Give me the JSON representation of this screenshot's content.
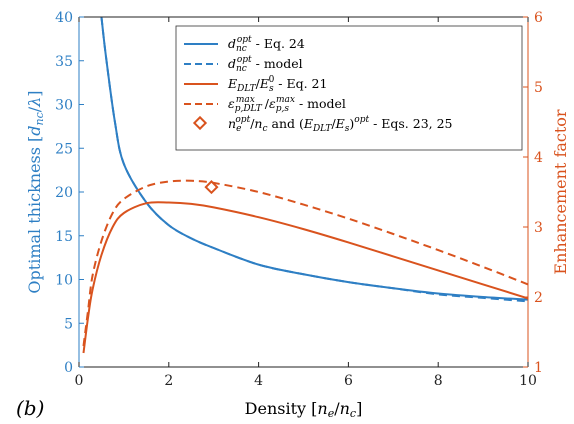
{
  "chart_data": {
    "type": "line",
    "panel_label": "(b)",
    "xlabel": "Density [n_e/n_c]",
    "ylabel_left": "Optimal thickness [d_nc/λ]",
    "ylabel_right": "Enhancement factor",
    "xlim": [
      0,
      10
    ],
    "ylim_left": [
      0,
      40
    ],
    "ylim_right": [
      1,
      6
    ],
    "x_ticks": [
      "0",
      "2",
      "4",
      "6",
      "8",
      "10"
    ],
    "y_ticks_left": [
      "0",
      "5",
      "10",
      "15",
      "20",
      "25",
      "30",
      "35",
      "40"
    ],
    "y_ticks_right": [
      "1",
      "2",
      "3",
      "4",
      "5",
      "6"
    ],
    "colors": {
      "blue": "#2E7FC4",
      "orange": "#D9531E",
      "axis_left": "#2E7FC4",
      "axis_right": "#D9531E"
    },
    "legend": {
      "placement": "top-right",
      "entries": [
        "d_nc^opt - Eq. 24",
        "d_nc^opt - model",
        "E_DLT/E_s^0 - Eq. 21",
        "ε_p,DLT^max/ε_p,s^max - model",
        "n_e^opt/n_c and (E_DLT/E_s)^opt - Eqs. 23, 25"
      ]
    },
    "series": [
      {
        "axis": "left",
        "color": "#2E7FC4",
        "dash": "solid",
        "x": [
          0.5,
          0.6,
          0.8,
          1.0,
          1.5,
          2.0,
          2.5,
          3.0,
          4.0,
          5.0,
          6.0,
          7.0,
          8.0,
          9.0,
          10.0
        ],
        "y": [
          40.0,
          35.5,
          28.0,
          23.2,
          18.8,
          16.2,
          14.7,
          13.6,
          11.7,
          10.6,
          9.7,
          9.0,
          8.4,
          8.0,
          7.7
        ]
      },
      {
        "axis": "left",
        "color": "#2E7FC4",
        "dash": "dashed",
        "x": [
          0.5,
          0.6,
          0.8,
          1.0,
          1.5,
          2.0,
          2.5,
          3.0,
          4.0,
          5.0,
          6.0,
          7.0,
          8.0,
          9.0,
          10.0
        ],
        "y": [
          40.0,
          35.5,
          28.0,
          23.2,
          18.8,
          16.2,
          14.7,
          13.6,
          11.7,
          10.6,
          9.7,
          9.0,
          8.3,
          7.9,
          7.5
        ]
      },
      {
        "axis": "right",
        "color": "#D9531E",
        "dash": "solid",
        "x": [
          0.1,
          0.2,
          0.3,
          0.5,
          0.75,
          1.0,
          1.5,
          2.0,
          2.5,
          3.0,
          4.0,
          5.0,
          6.0,
          7.0,
          8.0,
          9.0,
          10.0
        ],
        "y": [
          1.2,
          1.7,
          2.1,
          2.6,
          3.0,
          3.2,
          3.34,
          3.35,
          3.33,
          3.28,
          3.14,
          2.97,
          2.78,
          2.58,
          2.38,
          2.18,
          1.98
        ]
      },
      {
        "axis": "right",
        "color": "#D9531E",
        "dash": "dashed",
        "x": [
          0.1,
          0.2,
          0.3,
          0.5,
          0.75,
          1.0,
          1.5,
          2.0,
          2.5,
          3.0,
          4.0,
          5.0,
          6.0,
          7.0,
          8.0,
          9.0,
          10.0
        ],
        "y": [
          1.3,
          1.8,
          2.3,
          2.8,
          3.2,
          3.4,
          3.58,
          3.65,
          3.66,
          3.63,
          3.5,
          3.32,
          3.12,
          2.9,
          2.67,
          2.43,
          2.18
        ]
      }
    ],
    "marker": {
      "axis": "right",
      "x": 2.95,
      "y": 3.57,
      "shape": "diamond",
      "color": "#D9531E"
    }
  }
}
